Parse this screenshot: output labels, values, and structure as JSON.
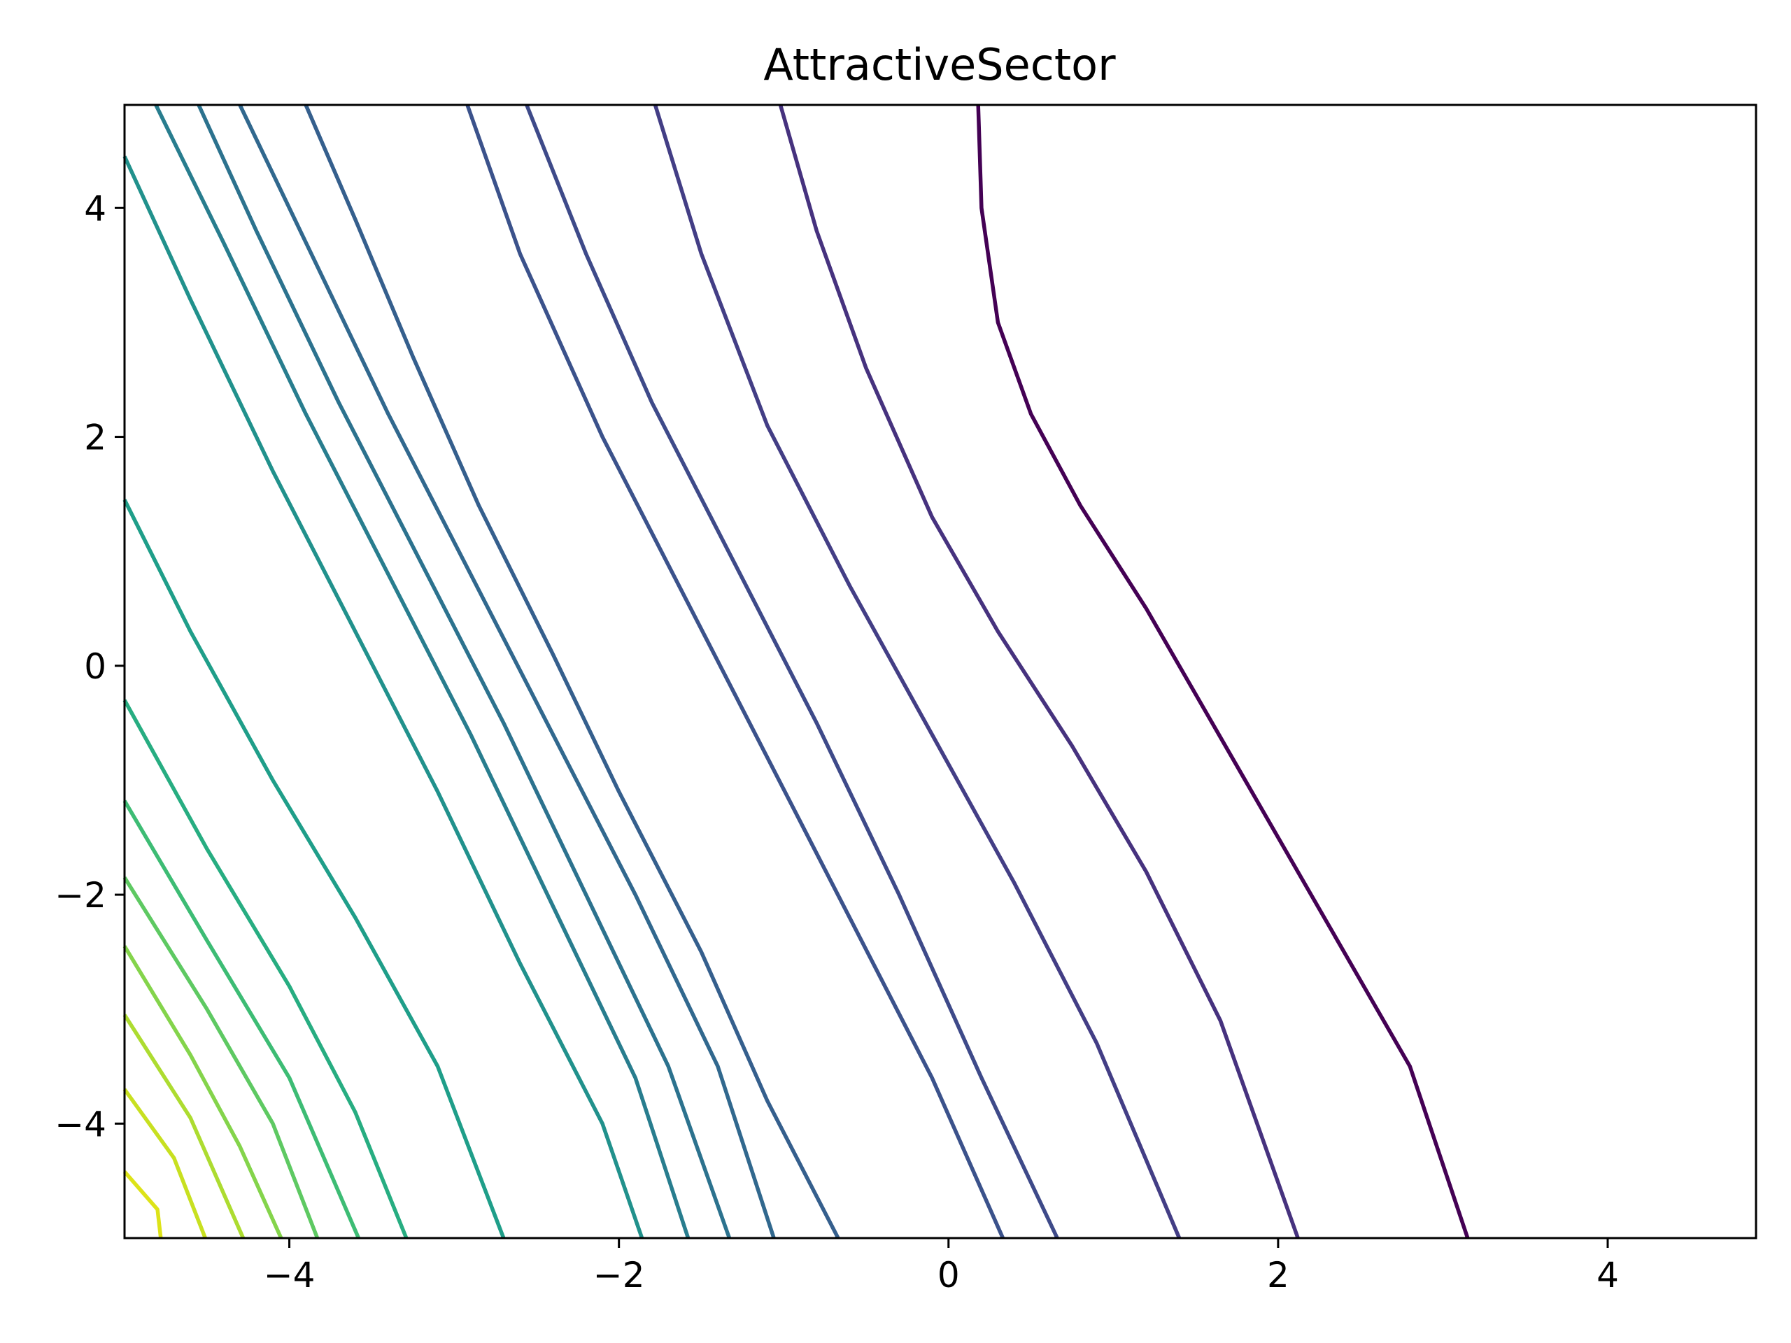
{
  "chart_data": {
    "type": "contour",
    "title": "AttractiveSector",
    "xlabel": "",
    "ylabel": "",
    "xlim": [
      -5,
      4.9
    ],
    "ylim": [
      -5,
      4.9
    ],
    "xticks": [
      -4,
      -2,
      0,
      2,
      4
    ],
    "yticks": [
      -4,
      -2,
      0,
      2,
      4
    ],
    "xtick_labels": [
      "−4",
      "−2",
      "0",
      "2",
      "4"
    ],
    "ytick_labels": [
      "−4",
      "−2",
      "0",
      "2",
      "4"
    ],
    "grid": false,
    "colormap": "viridis",
    "contour_lines": [
      {
        "color": "#440154",
        "points": [
          [
            0.18,
            4.9
          ],
          [
            0.2,
            4.0
          ],
          [
            0.3,
            3.0
          ],
          [
            0.5,
            2.2
          ],
          [
            0.8,
            1.4
          ],
          [
            1.2,
            0.5
          ],
          [
            1.6,
            -0.5
          ],
          [
            2.0,
            -1.5
          ],
          [
            2.4,
            -2.5
          ],
          [
            2.8,
            -3.5
          ],
          [
            3.15,
            -5.0
          ]
        ]
      },
      {
        "color": "#46327e",
        "points": [
          [
            -1.02,
            4.9
          ],
          [
            -0.8,
            3.8
          ],
          [
            -0.5,
            2.6
          ],
          [
            -0.1,
            1.3
          ],
          [
            0.3,
            0.3
          ],
          [
            0.75,
            -0.7
          ],
          [
            1.2,
            -1.8
          ],
          [
            1.65,
            -3.1
          ],
          [
            2.12,
            -5.0
          ]
        ]
      },
      {
        "color": "#433e85",
        "points": [
          [
            -1.78,
            4.9
          ],
          [
            -1.5,
            3.6
          ],
          [
            -1.1,
            2.1
          ],
          [
            -0.6,
            0.7
          ],
          [
            -0.1,
            -0.6
          ],
          [
            0.4,
            -1.9
          ],
          [
            0.9,
            -3.3
          ],
          [
            1.4,
            -5.0
          ]
        ]
      },
      {
        "color": "#3e4a89",
        "points": [
          [
            -2.56,
            4.9
          ],
          [
            -2.2,
            3.6
          ],
          [
            -1.8,
            2.3
          ],
          [
            -1.3,
            0.9
          ],
          [
            -0.8,
            -0.5
          ],
          [
            -0.3,
            -2.0
          ],
          [
            0.2,
            -3.6
          ],
          [
            0.66,
            -5.0
          ]
        ]
      },
      {
        "color": "#3b528b",
        "points": [
          [
            -2.92,
            4.9
          ],
          [
            -2.6,
            3.6
          ],
          [
            -2.1,
            2.0
          ],
          [
            -1.6,
            0.6
          ],
          [
            -1.1,
            -0.8
          ],
          [
            -0.6,
            -2.2
          ],
          [
            -0.1,
            -3.6
          ],
          [
            0.33,
            -5.0
          ]
        ]
      },
      {
        "color": "#355f8d",
        "points": [
          [
            -3.9,
            4.9
          ],
          [
            -3.6,
            3.9
          ],
          [
            -3.25,
            2.7
          ],
          [
            -2.85,
            1.4
          ],
          [
            -2.4,
            0.1
          ],
          [
            -2.0,
            -1.1
          ],
          [
            -1.5,
            -2.5
          ],
          [
            -1.1,
            -3.8
          ],
          [
            -0.67,
            -5.0
          ]
        ]
      },
      {
        "color": "#31688e",
        "points": [
          [
            -4.3,
            4.9
          ],
          [
            -3.9,
            3.7
          ],
          [
            -3.4,
            2.2
          ],
          [
            -2.9,
            0.8
          ],
          [
            -2.4,
            -0.6
          ],
          [
            -1.9,
            -2.0
          ],
          [
            -1.4,
            -3.5
          ],
          [
            -1.06,
            -5.0
          ]
        ]
      },
      {
        "color": "#2c728e",
        "points": [
          [
            -4.55,
            4.9
          ],
          [
            -4.2,
            3.8
          ],
          [
            -3.7,
            2.3
          ],
          [
            -3.2,
            0.9
          ],
          [
            -2.7,
            -0.5
          ],
          [
            -2.2,
            -2.0
          ],
          [
            -1.7,
            -3.5
          ],
          [
            -1.33,
            -5.0
          ]
        ]
      },
      {
        "color": "#287d8e",
        "points": [
          [
            -4.81,
            4.9
          ],
          [
            -4.4,
            3.7
          ],
          [
            -3.9,
            2.2
          ],
          [
            -3.4,
            0.8
          ],
          [
            -2.9,
            -0.6
          ],
          [
            -2.4,
            -2.1
          ],
          [
            -1.9,
            -3.6
          ],
          [
            -1.58,
            -5.0
          ]
        ]
      },
      {
        "color": "#21918c",
        "points": [
          [
            -5.0,
            4.45
          ],
          [
            -4.6,
            3.2
          ],
          [
            -4.1,
            1.7
          ],
          [
            -3.6,
            0.3
          ],
          [
            -3.1,
            -1.1
          ],
          [
            -2.6,
            -2.6
          ],
          [
            -2.1,
            -4.0
          ],
          [
            -1.86,
            -5.0
          ]
        ]
      },
      {
        "color": "#1f9e89",
        "points": [
          [
            -5.0,
            1.45
          ],
          [
            -4.6,
            0.3
          ],
          [
            -4.1,
            -1.0
          ],
          [
            -3.6,
            -2.2
          ],
          [
            -3.1,
            -3.5
          ],
          [
            -2.7,
            -5.0
          ]
        ]
      },
      {
        "color": "#27ad81",
        "points": [
          [
            -5.0,
            -0.3
          ],
          [
            -4.5,
            -1.6
          ],
          [
            -4.0,
            -2.8
          ],
          [
            -3.6,
            -3.9
          ],
          [
            -3.29,
            -5.0
          ]
        ]
      },
      {
        "color": "#3dbc74",
        "points": [
          [
            -5.0,
            -1.18
          ],
          [
            -4.5,
            -2.4
          ],
          [
            -4.0,
            -3.6
          ],
          [
            -3.58,
            -5.0
          ]
        ]
      },
      {
        "color": "#5ec962",
        "points": [
          [
            -5.0,
            -1.85
          ],
          [
            -4.5,
            -3.0
          ],
          [
            -4.1,
            -4.0
          ],
          [
            -3.83,
            -5.0
          ]
        ]
      },
      {
        "color": "#84d44b",
        "points": [
          [
            -5.0,
            -2.45
          ],
          [
            -4.6,
            -3.4
          ],
          [
            -4.3,
            -4.2
          ],
          [
            -4.05,
            -5.0
          ]
        ]
      },
      {
        "color": "#addc30",
        "points": [
          [
            -5.0,
            -3.05
          ],
          [
            -4.6,
            -3.95
          ],
          [
            -4.28,
            -5.0
          ]
        ]
      },
      {
        "color": "#c8e020",
        "points": [
          [
            -5.0,
            -3.7
          ],
          [
            -4.7,
            -4.3
          ],
          [
            -4.51,
            -5.0
          ]
        ]
      },
      {
        "color": "#dde318",
        "points": [
          [
            -5.0,
            -4.42
          ],
          [
            -4.8,
            -4.75
          ],
          [
            -4.78,
            -5.0
          ]
        ]
      }
    ]
  }
}
